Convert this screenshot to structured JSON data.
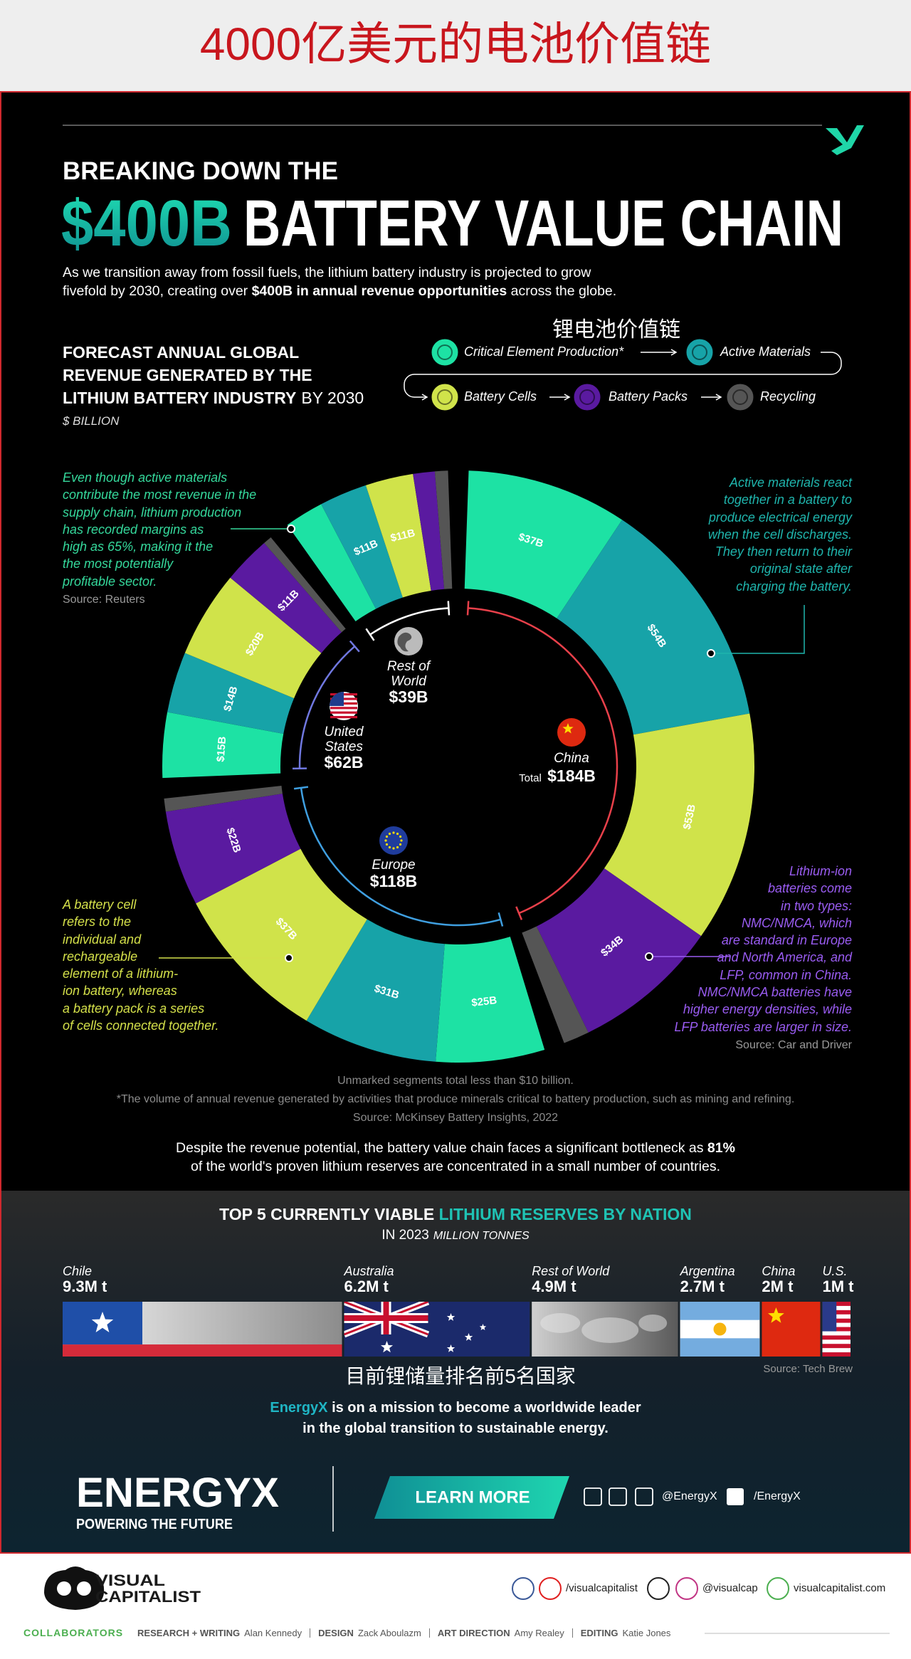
{
  "header": {
    "title": "4000亿美元的电池价值链"
  },
  "headline": {
    "kicker": "BREAKING DOWN THE",
    "amount": "$400B",
    "title": "BATTERY VALUE CHAIN"
  },
  "intro": [
    "As we transition away from fossil fuels, the lithium battery industry is projected to grow",
    "fivefold by 2030, creating over ",
    "$400B in annual revenue opportunities",
    " across the globe."
  ],
  "forecast": {
    "title_lines": [
      "FORECAST ANNUAL GLOBAL",
      "REVENUE GENERATED BY THE",
      "LITHIUM BATTERY INDUSTRY"
    ],
    "title_suffix": "BY 2030",
    "unit": "$ BILLION"
  },
  "value_chain_heading": "锂电池价值链",
  "annotations": {
    "margins": {
      "lines": [
        "Even though active materials",
        "contribute the most revenue in the",
        "supply chain, lithium production",
        "has recorded margins as",
        "high as 65%, making it the",
        "the most potentially",
        "profitable sector."
      ],
      "source": "Source: Reuters"
    },
    "active_materials": {
      "lines": [
        "Active materials react",
        "together in a battery to",
        "produce electrical energy",
        "when the cell discharges.",
        "They then return to their",
        "original state after",
        "charging the battery."
      ]
    },
    "chemistries": {
      "lines": [
        "Lithium-ion",
        "batteries come",
        "in two types:",
        "NMC/NMCA, which",
        "are standard in Europe",
        "and North America, and",
        "LFP, common in China.",
        "NMC/NMCA batteries have",
        "higher energy densities, while",
        "LFP batteries are larger in size."
      ],
      "source": "Source: Car and Driver"
    },
    "cells": {
      "lines": [
        "A battery cell",
        "refers to the",
        "individual and",
        "rechargeable",
        "element of a lithium-",
        "ion battery, whereas",
        "a battery pack is a series",
        "of cells connected together."
      ]
    }
  },
  "notes": [
    "Unmarked segments total less than $10 billion.",
    "*The volume of annual revenue generated by activities that produce minerals critical to battery production, such as mining and refining.",
    "Source: McKinsey Battery Insights, 2022"
  ],
  "bottleneck": [
    "Despite the revenue potential, the battery value chain faces a significant bottleneck as ",
    "81%",
    "of the world's proven lithium reserves are concentrated in a small number of countries."
  ],
  "chart_data": [
    {
      "type": "donut",
      "categories": [
        "China",
        "Europe",
        "United States",
        "Rest of World"
      ],
      "totals": [
        184,
        118,
        62,
        39
      ],
      "total_labels": [
        "$184B",
        "$118B",
        "$62B",
        "$39B"
      ],
      "total_word": "Total",
      "series": [
        {
          "name": "Critical Element Production*",
          "color": "#1de2a4",
          "values": [
            37,
            25,
            15,
            9
          ],
          "value_labels": [
            "$37B",
            "$25B",
            "$15B",
            null
          ]
        },
        {
          "name": "Active Materials",
          "color": "#17a3a8",
          "values": [
            54,
            31,
            14,
            11
          ],
          "value_labels": [
            "$54B",
            "$31B",
            "$14B",
            "$11B"
          ]
        },
        {
          "name": "Battery Cells",
          "color": "#d0e34a",
          "values": [
            53,
            37,
            20,
            11
          ],
          "value_labels": [
            "$53B",
            "$37B",
            "$20B",
            "$11B"
          ]
        },
        {
          "name": "Battery Packs",
          "color": "#5a1aa0",
          "values": [
            34,
            22,
            11,
            5
          ],
          "value_labels": [
            "$34B",
            "$22B",
            "$11B",
            null
          ]
        },
        {
          "name": "Recycling",
          "color": "#555555",
          "values": [
            6,
            3,
            2,
            3
          ]
        }
      ]
    },
    {
      "type": "bar",
      "title": "TOP 5 CURRENTLY VIABLE ",
      "title_highlight": "LITHIUM RESERVES BY NATION",
      "subtitle": "IN 2023",
      "unit": "MILLION TONNES",
      "categories": [
        "Chile",
        "Australia",
        "Rest of World",
        "Argentina",
        "China",
        "U.S."
      ],
      "values": [
        9.3,
        6.2,
        4.9,
        2.7,
        2,
        1
      ],
      "value_labels": [
        "9.3M t",
        "6.2M t",
        "4.9M t",
        "2.7M t",
        "2M t",
        "1M t"
      ],
      "caption": "目前锂储量排名前5名国家",
      "source": "Source: Tech Brew"
    }
  ],
  "mission": [
    "EnergyX",
    " is on a mission to become a worldwide leader",
    "in the global transition to sustainable energy."
  ],
  "brand": {
    "logo": "ENERGYX",
    "tagline": "POWERING THE FUTURE",
    "button": "LEARN MORE",
    "x_handle": "@EnergyX",
    "linkedin": "/EnergyX"
  },
  "footer": {
    "logo_top": "VISUAL",
    "logo_bottom": "CAPITALIST",
    "youtube": "/visualcapitalist",
    "handle": "@visualcap",
    "site": "visualcapitalist.com",
    "collaborators": "COLLABORATORS",
    "credits": [
      {
        "role": "RESEARCH + WRITING",
        "name": "Alan Kennedy"
      },
      {
        "role": "DESIGN",
        "name": "Zack Aboulazm"
      },
      {
        "role": "ART DIRECTION",
        "name": "Amy Realey"
      },
      {
        "role": "EDITING",
        "name": "Katie Jones"
      }
    ]
  }
}
